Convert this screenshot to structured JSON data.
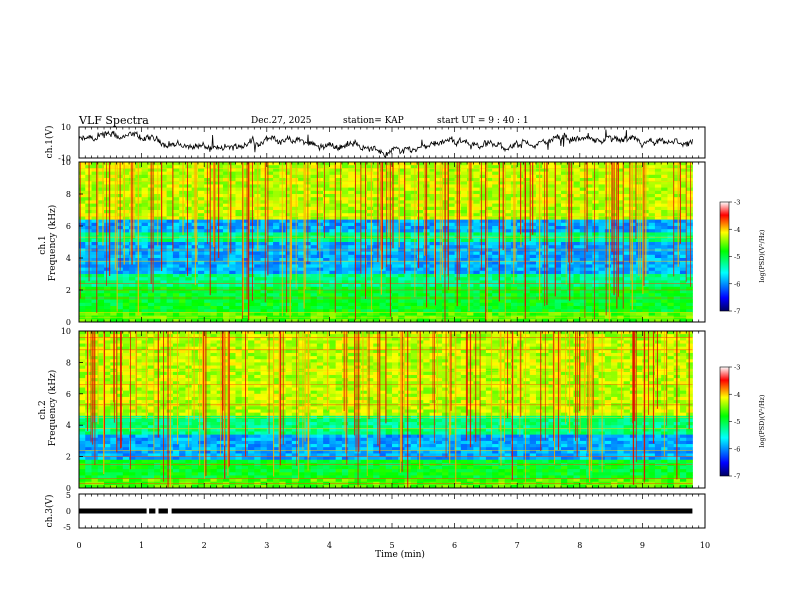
{
  "header": {
    "title": "VLF Spectra",
    "date": "Dec.27, 2025",
    "station": "station= KAP",
    "start_ut": "start UT =  9 : 40 : 1"
  },
  "chart_data": [
    {
      "type": "line",
      "id": "ch1-waveform",
      "ylabel": "ch.1(V)",
      "ylim": [
        -10,
        10
      ],
      "yticks": [
        "10",
        "-10"
      ],
      "xlim": [
        0,
        10
      ],
      "trace_range": [
        0,
        9.8
      ]
    },
    {
      "type": "heatmap",
      "id": "ch1-spectrogram",
      "ylabel": "ch.1\nFrequency (kHz)",
      "ylim": [
        0,
        10
      ],
      "yticks": [
        "0",
        "2",
        "4",
        "6",
        "8",
        "10"
      ],
      "xlim": [
        0,
        9.8
      ],
      "dominant_bands_khz": [
        [
          0,
          0.6,
          "mixed"
        ],
        [
          0.6,
          2.2,
          "cyan-green"
        ],
        [
          2.2,
          3.0,
          "cyan"
        ],
        [
          3.0,
          5.0,
          "blue"
        ],
        [
          5.0,
          5.5,
          "cyan"
        ],
        [
          5.5,
          6.3,
          "blue"
        ],
        [
          6.3,
          10,
          "green-yellow"
        ]
      ]
    },
    {
      "type": "heatmap",
      "id": "ch2-spectrogram",
      "ylabel": "ch.2\nFrequency (kHz)",
      "ylim": [
        0,
        10
      ],
      "yticks": [
        "0",
        "2",
        "4",
        "6",
        "8",
        "10"
      ],
      "xlim": [
        0,
        9.8
      ],
      "dominant_bands_khz": [
        [
          0,
          0.5,
          "mixed"
        ],
        [
          0.5,
          1.8,
          "cyan-green"
        ],
        [
          1.8,
          3.4,
          "blue"
        ],
        [
          3.4,
          4.6,
          "cyan"
        ],
        [
          4.6,
          10,
          "green-yellow"
        ]
      ]
    },
    {
      "type": "line",
      "id": "ch3-waveform",
      "ylabel": "ch.3(V)",
      "ylim": [
        -5,
        5
      ],
      "yticks": [
        "5",
        "0",
        "-5"
      ],
      "xlim": [
        0,
        10
      ],
      "trace_range": [
        0,
        9.8
      ],
      "level": 0,
      "gaps": [
        1.08,
        1.12,
        1.22,
        1.27,
        1.42,
        1.48
      ]
    }
  ],
  "time_axis": {
    "label": "Time (min)",
    "ticks": [
      "0",
      "1",
      "2",
      "3",
      "4",
      "5",
      "6",
      "7",
      "8",
      "9",
      "10"
    ],
    "range": [
      0,
      10
    ]
  },
  "colorbar": {
    "label": "log(PSD)(V²/Hz)",
    "ticks": [
      "-3",
      "-4",
      "-5",
      "-6",
      "-7"
    ],
    "range": [
      -7,
      -3
    ],
    "stops": [
      "#000060",
      "#0000ff",
      "#00ffff",
      "#00ff00",
      "#ffff00",
      "#ff0000",
      "#ffffff"
    ]
  }
}
